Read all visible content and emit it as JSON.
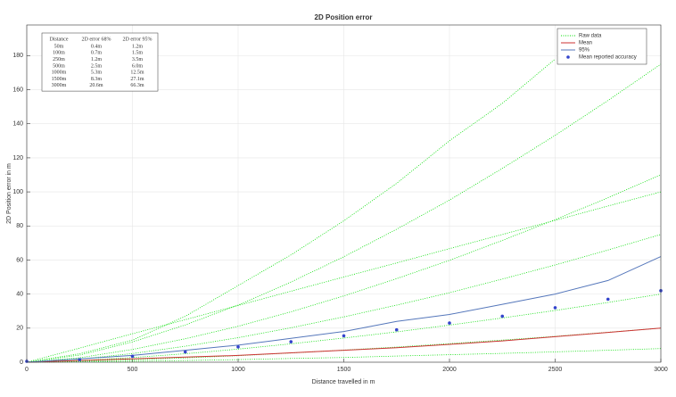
{
  "chart_data": {
    "type": "line",
    "title": "2D Position error",
    "xlabel": "Distance travelled in m",
    "ylabel": "2D Position error in m",
    "xlim": [
      0,
      3000
    ],
    "ylim": [
      0,
      198
    ],
    "xticks": [
      0,
      500,
      1000,
      1500,
      2000,
      2500,
      3000
    ],
    "yticks": [
      0,
      20,
      40,
      60,
      80,
      100,
      120,
      140,
      160,
      180
    ],
    "grid": true,
    "legend": "top-right",
    "x": [
      0,
      250,
      500,
      750,
      1000,
      1250,
      1500,
      1750,
      2000,
      2250,
      2500,
      2750,
      3000
    ],
    "series": [
      {
        "name": "Raw data",
        "color": "#00dd00",
        "style": "dotted",
        "lines": [
          [
            0,
            5,
            13,
            27,
            45,
            63,
            83,
            105,
            130,
            152,
            178,
            null,
            null
          ],
          [
            0,
            4.2,
            11.9,
            21.9,
            33.6,
            47.1,
            61.9,
            78.1,
            95.2,
            113.8,
            133.2,
            153.7,
            175
          ],
          [
            0,
            8.3,
            16.7,
            25,
            33.3,
            41.7,
            50,
            58.3,
            66.7,
            75,
            83.3,
            91.7,
            100
          ],
          [
            0,
            2.6,
            7.5,
            13.8,
            21.1,
            29.6,
            38.9,
            49.1,
            59.8,
            71.5,
            83.7,
            96.6,
            110
          ],
          [
            0,
            1.8,
            5.1,
            9.4,
            14.4,
            20.2,
            26.6,
            33.5,
            40.8,
            48.8,
            57.1,
            65.9,
            75
          ],
          [
            0,
            1,
            2.7,
            5,
            7.7,
            10.8,
            14.2,
            17.8,
            21.8,
            26,
            30.4,
            35.1,
            40
          ],
          [
            0,
            0.5,
            1.4,
            2.5,
            3.8,
            5.4,
            7.1,
            8.9,
            10.9,
            13,
            15.2,
            17.6,
            20
          ],
          [
            0,
            0.2,
            0.5,
            1,
            1.5,
            2.2,
            2.8,
            3.6,
            4.4,
            5.2,
            6.1,
            7,
            8
          ]
        ]
      },
      {
        "name": "Mean",
        "color": "#cc3333",
        "style": "line",
        "values": [
          0,
          1,
          2,
          3,
          4,
          5.5,
          7,
          8.5,
          10.5,
          12.5,
          15,
          17.5,
          20
        ]
      },
      {
        "name": "95%",
        "color": "#5577bb",
        "style": "line",
        "values": [
          0,
          2,
          4,
          7,
          10,
          14,
          18,
          24,
          28,
          34,
          40,
          48,
          62
        ]
      },
      {
        "name": "Mean reported accuracy",
        "color": "#3344cc",
        "style": "markers",
        "values": [
          0.5,
          1.5,
          3.5,
          6,
          9,
          12,
          15.5,
          19,
          23,
          27,
          32,
          37,
          42
        ]
      }
    ],
    "table": {
      "header": [
        "Distance",
        "2D error 68%",
        "2D error 95%"
      ],
      "rows": [
        [
          "50m",
          "0.4m",
          "1.2m"
        ],
        [
          "100m",
          "0.7m",
          "1.5m"
        ],
        [
          "250m",
          "1.2m",
          "3.5m"
        ],
        [
          "500m",
          "2.5m",
          "6.0m"
        ],
        [
          "1000m",
          "5.3m",
          "12.5m"
        ],
        [
          "1500m",
          "8.3m",
          "27.1m"
        ],
        [
          "3000m",
          "20.6m",
          "66.3m"
        ]
      ]
    }
  }
}
